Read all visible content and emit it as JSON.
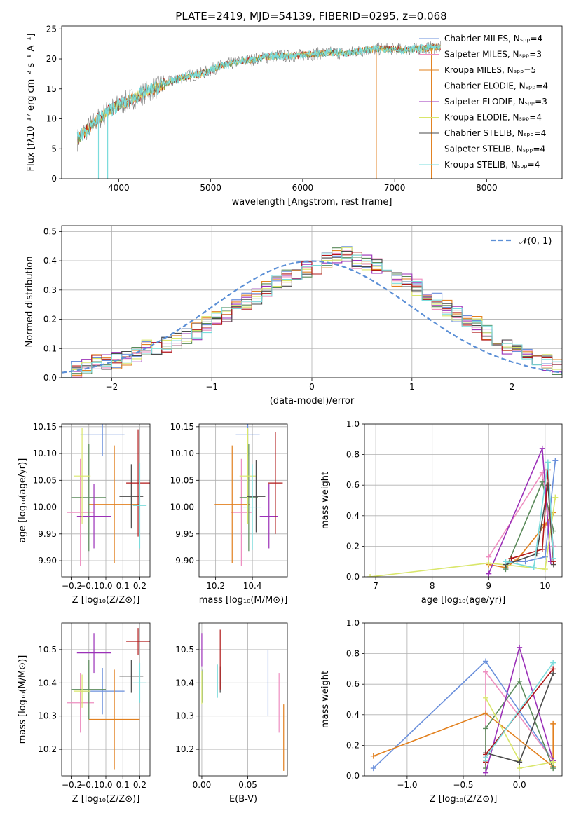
{
  "figure": {
    "title": "PLATE=2419, MJD=54139, FIBERID=0295, z=0.068"
  },
  "colors": {
    "series": [
      "#6a8fdb",
      "#ee8ec0",
      "#e2801e",
      "#5a8a5a",
      "#9b30b8",
      "#d9e66a",
      "#4a4a4a",
      "#b01818",
      "#7adcdc"
    ],
    "gaussian": "#5b8fd6",
    "grid": "#b0b0b0",
    "spectrum_gray": "#808080",
    "spectrum_cyan": "#7adcdc"
  },
  "chart_data": [
    {
      "id": "spectrum",
      "type": "line",
      "xlabel": "wavelength [Angstrom, rest frame]",
      "ylabel": "Flux [fλ10⁻¹⁷ erg cm⁻² s⁻¹ A⁻¹]",
      "xlim": [
        3380,
        8820
      ],
      "ylim": [
        0,
        25.5
      ],
      "xticks": [
        "4000",
        "5000",
        "6000",
        "7000",
        "8000"
      ],
      "xtick_values": [
        4000,
        5000,
        6000,
        7000,
        8000
      ],
      "yticks": [
        "0",
        "5",
        "10",
        "15",
        "20",
        "25"
      ],
      "ytick_values": [
        0,
        5,
        10,
        15,
        20,
        25
      ],
      "grid": false,
      "legend": "right",
      "legend_entries": [
        "Chabrier MILES, Nₛₚₚ=4",
        "Salpeter MILES, Nₛₚₚ=3",
        "Kroupa MILES, Nₛₚₚ=5",
        "Chabrier ELODIE, Nₛₚₚ=4",
        "Salpeter ELODIE, Nₛₚₚ=3",
        "Kroupa ELODIE, Nₛₚₚ=4",
        "Chabrier STELIB, Nₛₚₚ=4",
        "Salpeter STELIB, Nₛₚₚ=4",
        "Kroupa STELIB, Nₛₚₚ=4"
      ],
      "continuum": [
        [
          3550,
          6.5
        ],
        [
          3700,
          9
        ],
        [
          3900,
          11.5
        ],
        [
          4100,
          13
        ],
        [
          4300,
          14.5
        ],
        [
          4500,
          15.8
        ],
        [
          4700,
          17
        ],
        [
          4900,
          17.5
        ],
        [
          5100,
          18.8
        ],
        [
          5300,
          19.5
        ],
        [
          5500,
          20
        ],
        [
          5700,
          20.5
        ],
        [
          5900,
          20.5
        ],
        [
          6100,
          20.8
        ],
        [
          6300,
          21
        ],
        [
          6500,
          21
        ],
        [
          6700,
          21.5
        ],
        [
          6900,
          21.7
        ],
        [
          7100,
          21.5
        ],
        [
          7300,
          21.7
        ],
        [
          7500,
          22
        ]
      ],
      "drops": [
        [
          3780,
          0
        ],
        [
          3880,
          0
        ],
        [
          6800,
          0
        ],
        [
          7400,
          0
        ]
      ]
    },
    {
      "id": "residuals",
      "type": "line",
      "xlabel": "(data-model)/error",
      "ylabel": "Normed distribution",
      "xlim": [
        -2.5,
        2.5
      ],
      "ylim": [
        0,
        0.52
      ],
      "xticks": [
        "−2",
        "−1",
        "0",
        "1",
        "2"
      ],
      "xtick_values": [
        -2,
        -1,
        0,
        1,
        2
      ],
      "yticks": [
        "0.0",
        "0.1",
        "0.2",
        "0.3",
        "0.4",
        "0.5"
      ],
      "ytick_values": [
        0,
        0.1,
        0.2,
        0.3,
        0.4,
        0.5
      ],
      "grid": true,
      "legend": "top-right",
      "legend_label": "𝒩(0, 1)",
      "gaussian_mu": 0,
      "gaussian_sigma": 1,
      "bin_width": 0.1,
      "bins_start": -2.5,
      "histogram_values": [
        0.03,
        0.03,
        0.04,
        0.05,
        0.05,
        0.06,
        0.07,
        0.08,
        0.1,
        0.1,
        0.11,
        0.13,
        0.14,
        0.16,
        0.18,
        0.2,
        0.22,
        0.24,
        0.26,
        0.28,
        0.3,
        0.32,
        0.34,
        0.36,
        0.37,
        0.38,
        0.4,
        0.42,
        0.42,
        0.4,
        0.39,
        0.38,
        0.37,
        0.34,
        0.33,
        0.31,
        0.28,
        0.26,
        0.24,
        0.22,
        0.2,
        0.18,
        0.15,
        0.13,
        0.11,
        0.09,
        0.08,
        0.07,
        0.05,
        0.04
      ]
    },
    {
      "id": "age-vs-z",
      "type": "scatter",
      "xlabel": "Z [log₁₀(Z/Z⊙)]",
      "ylabel": "age  [log₁₀(age/yr)]",
      "xlim": [
        -0.26,
        0.26
      ],
      "ylim": [
        9.87,
        10.155
      ],
      "xticks": [
        "−0.2",
        "−0.1",
        "0.0",
        "0.1",
        "0.2"
      ],
      "xtick_values": [
        -0.2,
        -0.1,
        0,
        0.1,
        0.2
      ],
      "yticks": [
        "9.90",
        "9.95",
        "10.00",
        "10.05",
        "10.10",
        "10.15"
      ],
      "ytick_values": [
        9.9,
        9.95,
        10,
        10.05,
        10.1,
        10.15
      ],
      "grid": true,
      "points": [
        {
          "x": -0.02,
          "y": 10.135,
          "xerr": 0.13,
          "yerr": 0.04
        },
        {
          "x": -0.15,
          "y": 9.99,
          "xerr": 0.08,
          "yerr": 0.1
        },
        {
          "x": 0.05,
          "y": 10.005,
          "xerr": 0.15,
          "yerr": 0.11
        },
        {
          "x": -0.1,
          "y": 10.018,
          "xerr": 0.1,
          "yerr": 0.1
        },
        {
          "x": -0.07,
          "y": 9.983,
          "xerr": 0.1,
          "yerr": 0.06
        },
        {
          "x": -0.14,
          "y": 10.058,
          "xerr": 0.05,
          "yerr": 0.09
        },
        {
          "x": 0.15,
          "y": 10.02,
          "xerr": 0.07,
          "yerr": 0.06
        },
        {
          "x": 0.19,
          "y": 10.045,
          "xerr": 0.07,
          "yerr": 0.1
        },
        {
          "x": 0.2,
          "y": 10.003,
          "xerr": 0.04,
          "yerr": 0.08
        }
      ]
    },
    {
      "id": "age-vs-mass",
      "type": "scatter",
      "xlabel": "mass [log₁₀(M/M⊙)]",
      "ylabel": "",
      "xlim": [
        10.11,
        10.59
      ],
      "ylim": [
        9.87,
        10.155
      ],
      "xticks": [
        "10.2",
        "10.4"
      ],
      "xtick_values": [
        10.2,
        10.4
      ],
      "yticks": [
        "9.90",
        "9.95",
        "10.00",
        "10.05",
        "10.10",
        "10.15"
      ],
      "ytick_values": [
        9.9,
        9.95,
        10,
        10.05,
        10.1,
        10.15
      ],
      "grid": true,
      "points": [
        {
          "x": 10.375,
          "y": 10.135,
          "xerr": 0.065,
          "yerr": 0.04
        },
        {
          "x": 10.34,
          "y": 9.99,
          "xerr": 0.055,
          "yerr": 0.1
        },
        {
          "x": 10.29,
          "y": 10.005,
          "xerr": 0.095,
          "yerr": 0.11
        },
        {
          "x": 10.38,
          "y": 10.018,
          "xerr": 0.05,
          "yerr": 0.1
        },
        {
          "x": 10.49,
          "y": 9.983,
          "xerr": 0.05,
          "yerr": 0.06
        },
        {
          "x": 10.375,
          "y": 10.058,
          "xerr": 0.045,
          "yerr": 0.09
        },
        {
          "x": 10.42,
          "y": 10.02,
          "xerr": 0.05,
          "yerr": 0.067
        },
        {
          "x": 10.525,
          "y": 10.045,
          "xerr": 0.04,
          "yerr": 0.095
        },
        {
          "x": 10.4,
          "y": 10.0,
          "xerr": 0.05,
          "yerr": 0.08
        }
      ]
    },
    {
      "id": "weight-vs-age",
      "type": "line",
      "xlabel": "age  [log₁₀(age/yr)]",
      "ylabel": "mass weight",
      "xlim": [
        6.8,
        10.3
      ],
      "ylim": [
        0,
        1
      ],
      "xticks": [
        "7",
        "8",
        "9",
        "10"
      ],
      "xtick_values": [
        7,
        8,
        9,
        10
      ],
      "yticks": [
        "0.0",
        "0.2",
        "0.4",
        "0.6",
        "0.8",
        "1.0"
      ],
      "ytick_values": [
        0,
        0.2,
        0.4,
        0.6,
        0.8,
        1
      ],
      "grid": true,
      "series": [
        {
          "x": [
            9.3,
            9.65,
            10.0,
            10.18
          ],
          "y": [
            0.1,
            0.1,
            0.13,
            0.76
          ]
        },
        {
          "x": [
            9.0,
            9.95,
            10.15
          ],
          "y": [
            0.13,
            0.68,
            0.2
          ]
        },
        {
          "x": [
            9.0,
            9.3,
            9.5,
            10.0,
            10.15
          ],
          "y": [
            0.08,
            0.06,
            0.11,
            0.34,
            0.42
          ]
        },
        {
          "x": [
            9.3,
            9.95,
            10.15
          ],
          "y": [
            0.05,
            0.62,
            0.3
          ]
        },
        {
          "x": [
            9.0,
            9.95,
            10.1
          ],
          "y": [
            0.02,
            0.84,
            0.1
          ]
        },
        {
          "x": [
            6.9,
            9.0,
            10.0,
            10.18
          ],
          "y": [
            0.0,
            0.09,
            0.05,
            0.52
          ]
        },
        {
          "x": [
            9.3,
            9.85,
            10.05,
            10.15
          ],
          "y": [
            0.08,
            0.15,
            0.6,
            0.08
          ]
        },
        {
          "x": [
            9.4,
            9.95,
            10.05,
            10.15
          ],
          "y": [
            0.12,
            0.18,
            0.7,
            0.1
          ]
        },
        {
          "x": [
            9.3,
            9.8,
            10.05,
            10.15
          ],
          "y": [
            0.1,
            0.06,
            0.75,
            0.12
          ]
        }
      ]
    },
    {
      "id": "mass-vs-z",
      "type": "scatter",
      "xlabel": "Z [log₁₀(Z/Z⊙)]",
      "ylabel": "mass [log₁₀(M/M⊙)]",
      "xlim": [
        -0.26,
        0.26
      ],
      "ylim": [
        10.12,
        10.58
      ],
      "xticks": [
        "−0.2",
        "−0.1",
        "0.0",
        "0.1",
        "0.2"
      ],
      "xtick_values": [
        -0.2,
        -0.1,
        0,
        0.1,
        0.2
      ],
      "yticks": [
        "10.2",
        "10.3",
        "10.4",
        "10.5"
      ],
      "ytick_values": [
        10.2,
        10.3,
        10.4,
        10.5
      ],
      "grid": true,
      "points": [
        {
          "x": -0.02,
          "y": 10.375,
          "xerr": 0.13,
          "yerr": 0.07
        },
        {
          "x": -0.15,
          "y": 10.34,
          "xerr": 0.08,
          "yerr": 0.09
        },
        {
          "x": 0.05,
          "y": 10.29,
          "xerr": 0.15,
          "yerr": 0.15
        },
        {
          "x": -0.1,
          "y": 10.38,
          "xerr": 0.1,
          "yerr": 0.09
        },
        {
          "x": -0.07,
          "y": 10.49,
          "xerr": 0.1,
          "yerr": 0.06
        },
        {
          "x": -0.14,
          "y": 10.375,
          "xerr": 0.05,
          "yerr": 0.05
        },
        {
          "x": 0.15,
          "y": 10.42,
          "xerr": 0.07,
          "yerr": 0.05
        },
        {
          "x": 0.19,
          "y": 10.525,
          "xerr": 0.07,
          "yerr": 0.04
        },
        {
          "x": 0.2,
          "y": 10.4,
          "xerr": 0.04,
          "yerr": 0.06
        }
      ]
    },
    {
      "id": "mass-vs-ebv",
      "type": "scatter",
      "xlabel": "E(B-V)",
      "ylabel": "",
      "xlim": [
        -0.003,
        0.093
      ],
      "ylim": [
        10.12,
        10.58
      ],
      "xticks": [
        "0.00",
        "0.05"
      ],
      "xtick_values": [
        0,
        0.05
      ],
      "yticks": [
        "10.2",
        "10.3",
        "10.4",
        "10.5"
      ],
      "ytick_values": [
        10.2,
        10.3,
        10.4,
        10.5
      ],
      "grid": true,
      "points": [
        {
          "x": 0.072,
          "y": 10.4,
          "xerr": 0,
          "yerr": 0.1
        },
        {
          "x": 0.084,
          "y": 10.34,
          "xerr": 0,
          "yerr": 0.09
        },
        {
          "x": 0.089,
          "y": 10.235,
          "xerr": 0,
          "yerr": 0.1
        },
        {
          "x": 0.001,
          "y": 10.39,
          "xerr": 0,
          "yerr": 0.05
        },
        {
          "x": 0.0,
          "y": 10.5,
          "xerr": 0,
          "yerr": 0.05
        },
        {
          "x": 0.0,
          "y": 10.385,
          "xerr": 0,
          "yerr": 0.05
        },
        {
          "x": 0.02,
          "y": 10.41,
          "xerr": 0,
          "yerr": 0.04
        },
        {
          "x": 0.02,
          "y": 10.47,
          "xerr": 0,
          "yerr": 0.09
        },
        {
          "x": 0.017,
          "y": 10.405,
          "xerr": 0,
          "yerr": 0.05
        }
      ]
    },
    {
      "id": "weight-vs-z",
      "type": "line",
      "xlabel": "Z [log₁₀(Z/Z⊙)]",
      "ylabel": "mass weight",
      "xlim": [
        -1.38,
        0.38
      ],
      "ylim": [
        0,
        1
      ],
      "xticks": [
        "−1.0",
        "−0.5",
        "0.0"
      ],
      "xtick_values": [
        -1,
        -0.5,
        0
      ],
      "yticks": [
        "0.0",
        "0.2",
        "0.4",
        "0.6",
        "0.8",
        "1.0"
      ],
      "ytick_values": [
        0,
        0.2,
        0.4,
        0.6,
        0.8,
        1
      ],
      "grid": true,
      "series": [
        {
          "x": [
            -1.3,
            -0.3,
            0.3
          ],
          "y": [
            0.05,
            0.75,
            0.1
          ]
        },
        {
          "x": [
            -0.3,
            -0.3,
            0.3
          ],
          "y": [
            0.13,
            0.68,
            0.1
          ]
        },
        {
          "x": [
            -1.3,
            -0.3,
            0.3,
            0.3
          ],
          "y": [
            0.13,
            0.41,
            0.06,
            0.34
          ]
        },
        {
          "x": [
            -0.3,
            -0.3,
            0.0,
            0.3
          ],
          "y": [
            0.05,
            0.31,
            0.62,
            0.05
          ]
        },
        {
          "x": [
            -0.3,
            0.0,
            0.3
          ],
          "y": [
            0.02,
            0.84,
            0.1
          ]
        },
        {
          "x": [
            -0.3,
            0.0,
            0.0,
            0.3
          ],
          "y": [
            0.51,
            0.1,
            0.05,
            0.09
          ]
        },
        {
          "x": [
            -0.3,
            0.0,
            0.3
          ],
          "y": [
            0.15,
            0.09,
            0.67
          ]
        },
        {
          "x": [
            -0.3,
            -0.3,
            0.3
          ],
          "y": [
            0.09,
            0.14,
            0.7
          ]
        },
        {
          "x": [
            -0.3,
            -0.3,
            0.3
          ],
          "y": [
            0.1,
            0.12,
            0.74
          ]
        }
      ]
    }
  ]
}
